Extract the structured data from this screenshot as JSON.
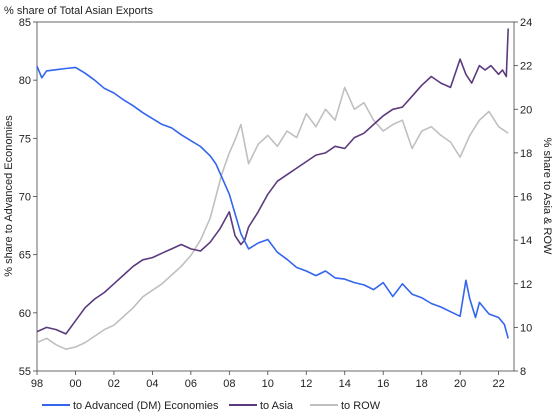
{
  "chart_data": {
    "type": "line",
    "title": "% share of Total Asian Exports",
    "xlabel": "",
    "ylabel_left": "% share to Advanced Economies",
    "ylabel_right": "% share to Asia & ROW",
    "ylim_left": [
      55,
      85
    ],
    "ylim_right": [
      8,
      24
    ],
    "xlim": [
      1998,
      2022.8
    ],
    "x_tick_values": [
      1998,
      2000,
      2002,
      2004,
      2006,
      2008,
      2010,
      2012,
      2014,
      2016,
      2018,
      2020,
      2022
    ],
    "x_tick_labels": [
      "98",
      "00",
      "02",
      "04",
      "06",
      "08",
      "10",
      "12",
      "14",
      "16",
      "18",
      "20",
      "22"
    ],
    "y_left_ticks": [
      "55",
      "60",
      "65",
      "70",
      "75",
      "80",
      "85"
    ],
    "y_right_ticks": [
      "8",
      "10",
      "12",
      "14",
      "16",
      "18",
      "20",
      "22",
      "24"
    ],
    "grid": false,
    "legend_position": "bottom",
    "series": [
      {
        "name": "to Advanced (DM) Economies",
        "axis": "left",
        "color": "#3366ee",
        "x": [
          1998.0,
          1998.25,
          1998.5,
          1999.0,
          1999.5,
          2000.0,
          2000.5,
          2001.0,
          2001.5,
          2002.0,
          2002.5,
          2003.0,
          2003.5,
          2004.0,
          2004.5,
          2005.0,
          2005.5,
          2006.0,
          2006.5,
          2007.0,
          2007.3,
          2007.6,
          2008.0,
          2008.3,
          2008.6,
          2009.0,
          2009.5,
          2010.0,
          2010.5,
          2011.0,
          2011.5,
          2012.0,
          2012.5,
          2013.0,
          2013.5,
          2014.0,
          2014.5,
          2015.0,
          2015.5,
          2016.0,
          2016.5,
          2017.0,
          2017.5,
          2018.0,
          2018.5,
          2019.0,
          2019.5,
          2020.0,
          2020.3,
          2020.5,
          2020.8,
          2021.0,
          2021.5,
          2022.0,
          2022.3,
          2022.5
        ],
        "values": [
          81.2,
          80.2,
          80.8,
          80.9,
          81.0,
          81.1,
          80.6,
          80.0,
          79.3,
          78.9,
          78.3,
          77.8,
          77.2,
          76.7,
          76.2,
          75.9,
          75.3,
          74.8,
          74.3,
          73.5,
          72.8,
          71.7,
          70.2,
          68.5,
          66.8,
          65.5,
          66.0,
          66.3,
          65.2,
          64.6,
          63.9,
          63.6,
          63.2,
          63.6,
          63.0,
          62.9,
          62.6,
          62.4,
          62.0,
          62.6,
          61.4,
          62.5,
          61.6,
          61.3,
          60.8,
          60.5,
          60.1,
          59.7,
          62.8,
          61.2,
          59.6,
          60.9,
          59.9,
          59.6,
          59.0,
          57.8
        ]
      },
      {
        "name": "to Asia",
        "axis": "right",
        "color": "#5b3a7e",
        "x": [
          1998.0,
          1998.5,
          1999.0,
          1999.5,
          2000.0,
          2000.5,
          2001.0,
          2001.5,
          2002.0,
          2002.5,
          2003.0,
          2003.5,
          2004.0,
          2004.5,
          2005.0,
          2005.5,
          2006.0,
          2006.5,
          2007.0,
          2007.5,
          2008.0,
          2008.3,
          2008.6,
          2008.8,
          2009.0,
          2009.5,
          2010.0,
          2010.5,
          2011.0,
          2011.5,
          2012.0,
          2012.5,
          2013.0,
          2013.5,
          2014.0,
          2014.5,
          2015.0,
          2015.5,
          2016.0,
          2016.5,
          2017.0,
          2017.5,
          2018.0,
          2018.5,
          2019.0,
          2019.5,
          2020.0,
          2020.3,
          2020.6,
          2021.0,
          2021.3,
          2021.6,
          2022.0,
          2022.2,
          2022.4,
          2022.5
        ],
        "values": [
          9.8,
          10.0,
          9.9,
          9.7,
          10.3,
          10.9,
          11.3,
          11.6,
          12.0,
          12.4,
          12.8,
          13.1,
          13.2,
          13.4,
          13.6,
          13.8,
          13.6,
          13.5,
          13.9,
          14.5,
          15.3,
          14.2,
          13.8,
          14.0,
          14.6,
          15.3,
          16.1,
          16.7,
          17.0,
          17.3,
          17.6,
          17.9,
          18.0,
          18.3,
          18.2,
          18.7,
          18.9,
          19.3,
          19.7,
          20.0,
          20.1,
          20.6,
          21.1,
          21.5,
          21.2,
          21.0,
          22.3,
          21.6,
          21.2,
          22.0,
          21.8,
          22.0,
          21.6,
          21.8,
          21.5,
          23.7
        ]
      },
      {
        "name": "to ROW",
        "axis": "right",
        "color": "#c0c0c0",
        "x": [
          1998.0,
          1998.5,
          1999.0,
          1999.5,
          2000.0,
          2000.5,
          2001.0,
          2001.5,
          2002.0,
          2002.5,
          2003.0,
          2003.5,
          2004.0,
          2004.5,
          2005.0,
          2005.5,
          2006.0,
          2006.5,
          2007.0,
          2007.3,
          2007.6,
          2008.0,
          2008.3,
          2008.6,
          2009.0,
          2009.5,
          2010.0,
          2010.5,
          2011.0,
          2011.5,
          2012.0,
          2012.5,
          2013.0,
          2013.5,
          2014.0,
          2014.5,
          2015.0,
          2015.5,
          2016.0,
          2016.5,
          2017.0,
          2017.5,
          2018.0,
          2018.5,
          2019.0,
          2019.5,
          2020.0,
          2020.5,
          2021.0,
          2021.5,
          2022.0,
          2022.5
        ],
        "values": [
          9.3,
          9.5,
          9.2,
          9.0,
          9.1,
          9.3,
          9.6,
          9.9,
          10.1,
          10.5,
          10.9,
          11.4,
          11.7,
          12.0,
          12.4,
          12.8,
          13.3,
          14.0,
          15.0,
          16.0,
          17.0,
          18.0,
          18.6,
          19.3,
          17.5,
          18.4,
          18.8,
          18.3,
          19.0,
          18.7,
          19.8,
          19.2,
          20.0,
          19.5,
          21.0,
          20.0,
          20.3,
          19.5,
          19.0,
          19.3,
          19.5,
          18.2,
          19.0,
          19.2,
          18.8,
          18.5,
          17.8,
          18.8,
          19.5,
          19.9,
          19.2,
          18.9
        ]
      }
    ]
  }
}
